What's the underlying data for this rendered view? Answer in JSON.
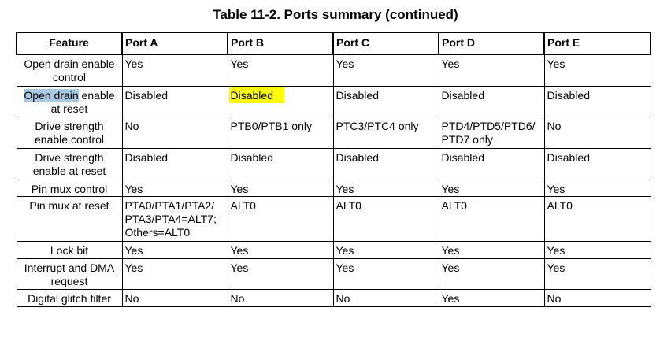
{
  "title": "Table 11-2.   Ports summary (continued)",
  "headers": [
    "Feature",
    "Port A",
    "Port B",
    "Port C",
    "Port D",
    "Port E"
  ],
  "highlights": {
    "blue": "#a9c9e1",
    "yellow": "#ffff00"
  },
  "rows": [
    {
      "feature": "Open drain enable control",
      "cells": [
        "Yes",
        "Yes",
        "Yes",
        "Yes",
        "Yes"
      ]
    },
    {
      "feature_highlight": "Open drain",
      "feature_rest": " enable at reset",
      "cells": [
        "Disabled",
        "Disabled",
        "Disabled",
        "Disabled",
        "Disabled"
      ]
    },
    {
      "feature": "Drive strength enable control",
      "cells": [
        "No",
        "PTB0/PTB1 only",
        "PTC3/PTC4 only",
        "PTD4/PTD5/PTD6/ PTD7 only",
        "No"
      ]
    },
    {
      "feature": "Drive strength enable at reset",
      "cells": [
        "Disabled",
        "Disabled",
        "Disabled",
        "Disabled",
        "Disabled"
      ]
    },
    {
      "feature": "Pin mux control",
      "cells": [
        "Yes",
        "Yes",
        "Yes",
        "Yes",
        "Yes"
      ]
    },
    {
      "feature": "Pin mux at reset",
      "cells": [
        "PTA0/PTA1/PTA2/ PTA3/PTA4=ALT7; Others=ALT0",
        "ALT0",
        "ALT0",
        "ALT0",
        "ALT0"
      ]
    },
    {
      "feature": "Lock bit",
      "cells": [
        "Yes",
        "Yes",
        "Yes",
        "Yes",
        "Yes"
      ]
    },
    {
      "feature": "Interrupt and DMA request",
      "cells": [
        "Yes",
        "Yes",
        "Yes",
        "Yes",
        "Yes"
      ]
    },
    {
      "feature": "Digital glitch filter",
      "cells": [
        "No",
        "No",
        "No",
        "Yes",
        "No"
      ]
    }
  ]
}
